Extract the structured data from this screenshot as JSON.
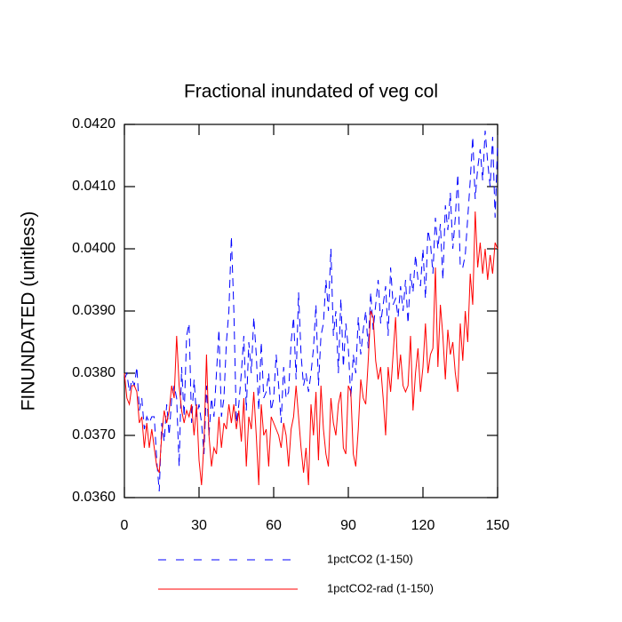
{
  "chart_data": {
    "type": "line",
    "title": "Fractional inundated of veg col",
    "y_label": "FINUNDATED  (unitless)",
    "x": [
      0,
      1,
      2,
      3,
      4,
      5,
      6,
      7,
      8,
      9,
      10,
      11,
      12,
      13,
      14,
      15,
      16,
      17,
      18,
      19,
      20,
      21,
      22,
      23,
      24,
      25,
      26,
      27,
      28,
      29,
      30,
      31,
      32,
      33,
      34,
      35,
      36,
      37,
      38,
      39,
      40,
      41,
      42,
      43,
      44,
      45,
      46,
      47,
      48,
      49,
      50,
      51,
      52,
      53,
      54,
      55,
      56,
      57,
      58,
      59,
      60,
      61,
      62,
      63,
      64,
      65,
      66,
      67,
      68,
      69,
      70,
      71,
      72,
      73,
      74,
      75,
      76,
      77,
      78,
      79,
      80,
      81,
      82,
      83,
      84,
      85,
      86,
      87,
      88,
      89,
      90,
      91,
      92,
      93,
      94,
      95,
      96,
      97,
      98,
      99,
      100,
      101,
      102,
      103,
      104,
      105,
      106,
      107,
      108,
      109,
      110,
      111,
      112,
      113,
      114,
      115,
      116,
      117,
      118,
      119,
      120,
      121,
      122,
      123,
      124,
      125,
      126,
      127,
      128,
      129,
      130,
      131,
      132,
      133,
      134,
      135,
      136,
      137,
      138,
      139,
      140,
      141,
      142,
      143,
      144,
      145,
      146,
      147,
      148,
      149,
      150
    ],
    "series": [
      {
        "name": "1pctCO2 (1-150)",
        "color": "#0000ff",
        "dash": true,
        "values": [
          0.0379,
          0.038,
          0.0377,
          0.0379,
          0.0378,
          0.0381,
          0.0374,
          0.0376,
          0.0371,
          0.0373,
          0.0372,
          0.0373,
          0.0373,
          0.0366,
          0.0361,
          0.0372,
          0.0369,
          0.0375,
          0.037,
          0.0376,
          0.0378,
          0.0376,
          0.0365,
          0.0381,
          0.0373,
          0.0386,
          0.0388,
          0.0372,
          0.0379,
          0.0373,
          0.0375,
          0.0372,
          0.0367,
          0.0378,
          0.037,
          0.0376,
          0.0373,
          0.038,
          0.0387,
          0.0373,
          0.0376,
          0.0385,
          0.039,
          0.0402,
          0.039,
          0.0372,
          0.0375,
          0.038,
          0.0386,
          0.0374,
          0.0385,
          0.038,
          0.0389,
          0.0383,
          0.0374,
          0.0385,
          0.0376,
          0.0377,
          0.038,
          0.0374,
          0.0376,
          0.0383,
          0.0378,
          0.0372,
          0.0381,
          0.0376,
          0.0377,
          0.0385,
          0.0389,
          0.0379,
          0.0393,
          0.0383,
          0.0378,
          0.038,
          0.0377,
          0.038,
          0.0384,
          0.0391,
          0.0378,
          0.0386,
          0.0388,
          0.0395,
          0.039,
          0.04,
          0.0386,
          0.039,
          0.038,
          0.0392,
          0.0381,
          0.0388,
          0.0384,
          0.0376,
          0.0383,
          0.038,
          0.0389,
          0.0383,
          0.0387,
          0.039,
          0.0384,
          0.0393,
          0.0387,
          0.0391,
          0.0395,
          0.0388,
          0.0391,
          0.0394,
          0.0386,
          0.0397,
          0.0391,
          0.0392,
          0.0389,
          0.0394,
          0.039,
          0.0395,
          0.0388,
          0.0396,
          0.0393,
          0.0399,
          0.0395,
          0.0394,
          0.04,
          0.0392,
          0.0403,
          0.0401,
          0.0396,
          0.0405,
          0.04,
          0.0404,
          0.0395,
          0.0407,
          0.0403,
          0.0409,
          0.04,
          0.0405,
          0.0412,
          0.0397,
          0.0397,
          0.0399,
          0.0405,
          0.0411,
          0.0418,
          0.0408,
          0.0413,
          0.0416,
          0.0411,
          0.0419,
          0.0414,
          0.041,
          0.0418,
          0.0405,
          0.0417
        ]
      },
      {
        "name": "1pctCO2-rad (1-150)",
        "color": "#ff0000",
        "dash": false,
        "values": [
          0.038,
          0.0376,
          0.0375,
          0.0378,
          0.0378,
          0.0377,
          0.0372,
          0.0373,
          0.0368,
          0.0372,
          0.0368,
          0.0371,
          0.0368,
          0.0365,
          0.0364,
          0.037,
          0.0374,
          0.0372,
          0.0374,
          0.0378,
          0.0376,
          0.0386,
          0.0378,
          0.0374,
          0.0372,
          0.0374,
          0.0373,
          0.0375,
          0.037,
          0.0375,
          0.0366,
          0.0362,
          0.0369,
          0.0383,
          0.037,
          0.0365,
          0.0368,
          0.0367,
          0.0373,
          0.0368,
          0.0372,
          0.0371,
          0.0375,
          0.0372,
          0.0375,
          0.0371,
          0.0374,
          0.0369,
          0.0376,
          0.0365,
          0.0373,
          0.0371,
          0.0377,
          0.037,
          0.0362,
          0.0375,
          0.037,
          0.0371,
          0.0365,
          0.0373,
          0.0372,
          0.0371,
          0.037,
          0.0368,
          0.0372,
          0.037,
          0.0365,
          0.0371,
          0.0373,
          0.0378,
          0.0373,
          0.0368,
          0.0364,
          0.0368,
          0.0362,
          0.0375,
          0.037,
          0.0377,
          0.0366,
          0.0378,
          0.0371,
          0.0367,
          0.0365,
          0.0376,
          0.0372,
          0.037,
          0.0375,
          0.0377,
          0.0368,
          0.0367,
          0.0378,
          0.0377,
          0.0367,
          0.0365,
          0.0371,
          0.0379,
          0.0376,
          0.0375,
          0.0382,
          0.039,
          0.0389,
          0.0382,
          0.0379,
          0.0381,
          0.0376,
          0.037,
          0.0381,
          0.0377,
          0.0383,
          0.0389,
          0.0379,
          0.0383,
          0.0378,
          0.0377,
          0.0378,
          0.0386,
          0.0374,
          0.038,
          0.0384,
          0.0377,
          0.0381,
          0.0388,
          0.038,
          0.0383,
          0.0384,
          0.0397,
          0.0381,
          0.0391,
          0.0386,
          0.0379,
          0.0387,
          0.0383,
          0.0385,
          0.038,
          0.0377,
          0.0388,
          0.0382,
          0.039,
          0.0385,
          0.0396,
          0.0391,
          0.0406,
          0.0397,
          0.0401,
          0.0396,
          0.04,
          0.0395,
          0.0399,
          0.0396,
          0.0401,
          0.04
        ]
      }
    ],
    "xlim": [
      0,
      150
    ],
    "xticks": [
      0,
      30,
      60,
      90,
      120,
      150
    ],
    "ylim": [
      0.036,
      0.042
    ],
    "yticks": [
      {
        "value": 0.036,
        "label": "0.0360"
      },
      {
        "value": 0.037,
        "label": "0.0370"
      },
      {
        "value": 0.038,
        "label": "0.0380"
      },
      {
        "value": 0.039,
        "label": "0.0390"
      },
      {
        "value": 0.04,
        "label": "0.0400"
      },
      {
        "value": 0.041,
        "label": "0.0410"
      },
      {
        "value": 0.042,
        "label": "0.0420"
      }
    ]
  }
}
